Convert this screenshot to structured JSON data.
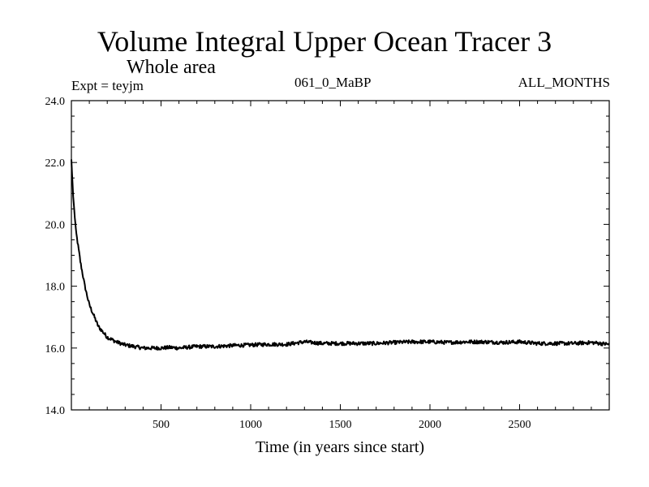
{
  "chart_data": {
    "type": "line",
    "title": "Volume Integral Upper Ocean Tracer 3",
    "subtitle": "Whole area",
    "experiment_label": "Expt = teyjm",
    "period_label": "061_0_MaBP",
    "months_label": "ALL_MONTHS",
    "xlabel": "Time (in years since start)",
    "ylabel": "",
    "xlim": [
      0,
      3000
    ],
    "ylim": [
      14.0,
      24.0
    ],
    "xticks": [
      500,
      1000,
      1500,
      2000,
      2500
    ],
    "xtick_labels": [
      "500",
      "1000",
      "1500",
      "2000",
      "2500"
    ],
    "yticks": [
      14.0,
      16.0,
      18.0,
      20.0,
      22.0,
      24.0
    ],
    "ytick_labels": [
      "14.0",
      "16.0",
      "18.0",
      "20.0",
      "22.0",
      "24.0"
    ],
    "grid": false,
    "series": [
      {
        "name": "Upper Ocean Tracer 3",
        "color": "#000000",
        "x": [
          0,
          10,
          25,
          50,
          75,
          100,
          150,
          200,
          250,
          300,
          350,
          400,
          450,
          500,
          550,
          600,
          700,
          800,
          900,
          1000,
          1100,
          1200,
          1300,
          1400,
          1500,
          1600,
          1700,
          1800,
          1900,
          2000,
          2100,
          2200,
          2300,
          2400,
          2500,
          2600,
          2700,
          2800,
          2900,
          3000
        ],
        "values": [
          22.1,
          20.9,
          19.8,
          18.8,
          18.0,
          17.4,
          16.7,
          16.35,
          16.2,
          16.1,
          16.05,
          16.0,
          16.0,
          16.0,
          16.02,
          16.0,
          16.05,
          16.05,
          16.08,
          16.1,
          16.12,
          16.12,
          16.2,
          16.15,
          16.15,
          16.15,
          16.15,
          16.18,
          16.2,
          16.2,
          16.18,
          16.2,
          16.2,
          16.18,
          16.2,
          16.15,
          16.15,
          16.15,
          16.18,
          16.12
        ]
      }
    ]
  }
}
